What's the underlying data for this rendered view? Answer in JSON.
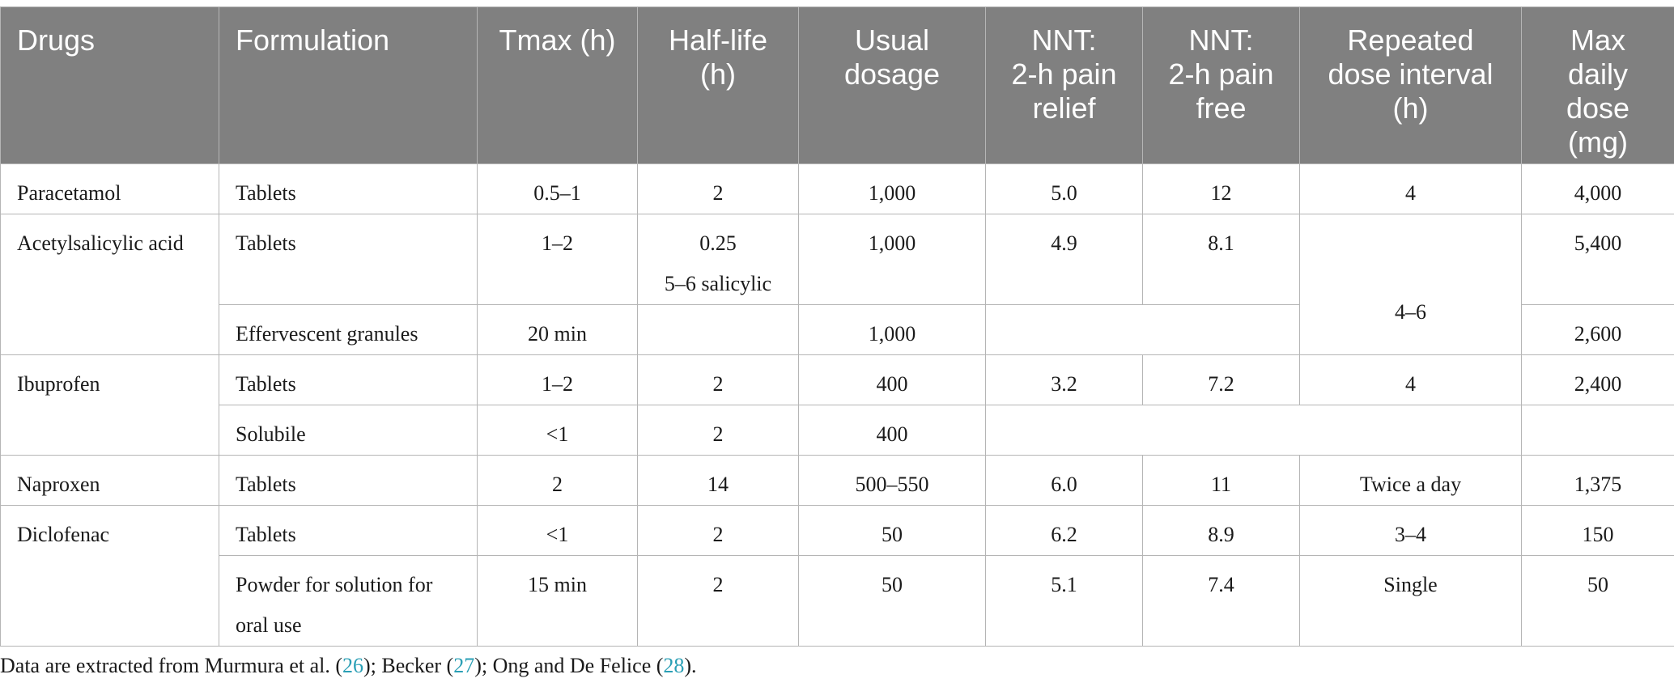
{
  "headers": {
    "drugs": "Drugs",
    "formulation": "Formulation",
    "tmax": "Tmax (h)",
    "half_life": [
      "Half-life",
      "(h)"
    ],
    "usual_dosage": [
      "Usual",
      "dosage"
    ],
    "nnt_relief": [
      "NNT:",
      "2-h pain",
      "relief"
    ],
    "nnt_free": [
      "NNT:",
      "2-h pain",
      "free"
    ],
    "repeated_interval": [
      "Repeated",
      "dose interval",
      "(h)"
    ],
    "max_daily": [
      "Max",
      "daily",
      "dose",
      "(mg)"
    ]
  },
  "rows": {
    "paracetamol": {
      "drug": "Paracetamol",
      "formulation": "Tablets",
      "tmax": "0.5–1",
      "half_life": "2",
      "dosage": "1,000",
      "nnt_relief": "5.0",
      "nnt_free": "12",
      "interval": "4",
      "max": "4,000"
    },
    "asa_tablets": {
      "drug": "Acetylsalicylic acid",
      "formulation": "Tablets",
      "tmax": "1–2",
      "half_life": "0.25",
      "half_life_2": "5–6 salicylic",
      "dosage": "1,000",
      "nnt_relief": "4.9",
      "nnt_free": "8.1",
      "interval": "",
      "max": "5,400"
    },
    "asa_granules": {
      "formulation": "Effervescent granules",
      "tmax": "20 min",
      "half_life": "",
      "dosage": "1,000",
      "nnt": "",
      "interval": "4–6",
      "max": "2,600"
    },
    "ibuprofen_tablets": {
      "drug": "Ibuprofen",
      "formulation": "Tablets",
      "tmax": "1–2",
      "half_life": "2",
      "dosage": "400",
      "nnt_relief": "3.2",
      "nnt_free": "7.2",
      "interval": "4",
      "max": "2,400"
    },
    "ibuprofen_solubile": {
      "formulation": "Solubile",
      "tmax": "<1",
      "half_life": "2",
      "dosage": "400",
      "rest": "",
      "max": ""
    },
    "naproxen": {
      "drug": "Naproxen",
      "formulation": "Tablets",
      "tmax": "2",
      "half_life": "14",
      "dosage": "500–550",
      "nnt_relief": "6.0",
      "nnt_free": "11",
      "interval": "Twice a day",
      "max": "1,375"
    },
    "diclofenac_tablets": {
      "drug": "Diclofenac",
      "formulation": "Tablets",
      "tmax": "<1",
      "half_life": "2",
      "dosage": "50",
      "nnt_relief": "6.2",
      "nnt_free": "8.9",
      "interval": "3–4",
      "max": "150"
    },
    "diclofenac_powder": {
      "formulation_1": "Powder for solution for",
      "formulation_2": "oral use",
      "tmax": "15 min",
      "half_life": "2",
      "dosage": "50",
      "nnt_relief": "5.1",
      "nnt_free": "7.4",
      "interval": "Single",
      "max": "50"
    }
  },
  "footnote": {
    "prefix": "Data are extracted from Murmura et al. (",
    "ref1": "26",
    "mid1": "); Becker (",
    "ref2": "27",
    "mid2": "); Ong and De Felice (",
    "ref3": "28",
    "suffix": ")."
  }
}
